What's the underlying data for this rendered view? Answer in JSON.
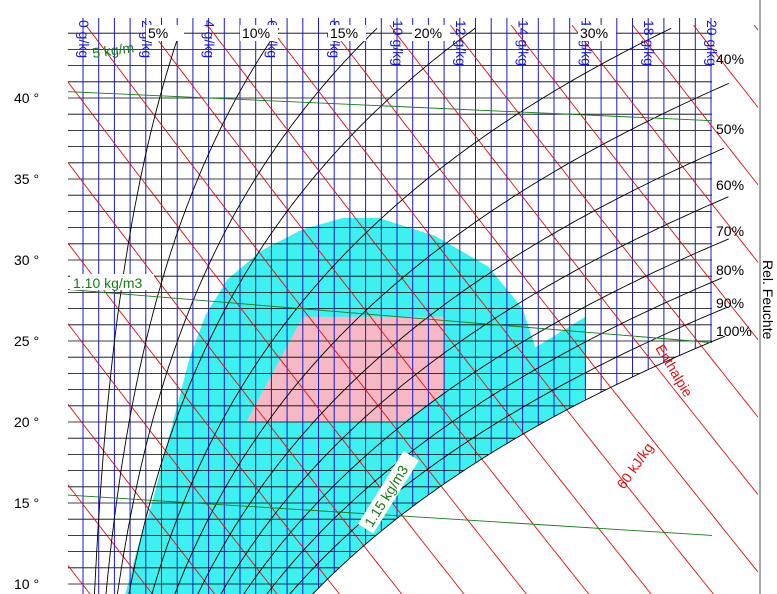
{
  "chart_data": {
    "type": "psychrometric",
    "y_axis": {
      "label": "",
      "ticks": [
        "10 °",
        "15 °",
        "20 °",
        "25 °",
        "30 °",
        "35 °",
        "40 °"
      ],
      "tick_values": [
        10,
        15,
        20,
        25,
        30,
        35,
        40
      ],
      "range": [
        9,
        43.5
      ]
    },
    "x_axis": {
      "label": "",
      "range": [
        0,
        21.5
      ],
      "top_labels": [
        "0 g/kg",
        "2 g/kg",
        "4 g/kg",
        "6 g/kg",
        "8 g/kg",
        "10 g/kg",
        "12 g/kg",
        "14 g/kg",
        "16 g/kg",
        "18 g/kg",
        "20 g/kg"
      ],
      "top_label_values": [
        0,
        2,
        4,
        6,
        8,
        10,
        12,
        14,
        16,
        18,
        20
      ]
    },
    "relative_humidity": {
      "series_title": "Rel. Feuchte",
      "curves": [
        {
          "label": "5%",
          "value": 5
        },
        {
          "label": "10%",
          "value": 10
        },
        {
          "label": "15%",
          "value": 15
        },
        {
          "label": "20%",
          "value": 20
        },
        {
          "label": "30%",
          "value": 30
        },
        {
          "label": "40%",
          "value": 40
        },
        {
          "label": "50%",
          "value": 50
        },
        {
          "label": "60%",
          "value": 60
        },
        {
          "label": "70%",
          "value": 70
        },
        {
          "label": "80%",
          "value": 80
        },
        {
          "label": "90%",
          "value": 90
        },
        {
          "label": "100%",
          "value": 100
        }
      ]
    },
    "density_lines": [
      {
        "label": "1.05 kg/m3",
        "shown_label": "5 kg/m",
        "value": 1.05
      },
      {
        "label": "1.10 kg/m3",
        "value": 1.1
      },
      {
        "label": "1.15 kg/m3",
        "value": 1.15
      }
    ],
    "enthalpy": {
      "title": "Enthalpie",
      "marked_label": "60 kJ/kg",
      "marked_value": 60,
      "line_spacing": 5
    },
    "regions": [
      {
        "name": "comfort-outer",
        "color": "#3ef0f0",
        "x_range": [
          0.0,
          21.0
        ],
        "y_range": [
          9.0,
          32.6
        ]
      },
      {
        "name": "comfort-inner",
        "color": "#f5b8c4",
        "points": [
          [
            5.2,
            20.0
          ],
          [
            7.0,
            26.5
          ],
          [
            11.5,
            26.5
          ],
          [
            11.5,
            21.8
          ],
          [
            10.2,
            20.0
          ]
        ]
      }
    ],
    "colors": {
      "mixing_ratio": "#1a1acc",
      "isotherm": "#000000",
      "relative_humidity": "#000000",
      "enthalpy": "#e01010",
      "density": "#1a7a1a"
    },
    "grid": true
  }
}
